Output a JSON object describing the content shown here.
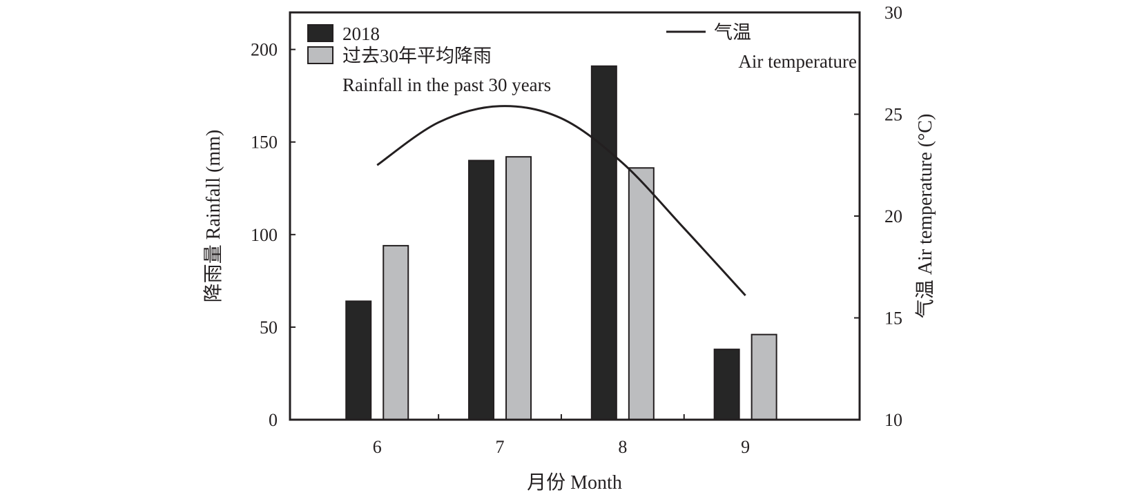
{
  "chart_data": {
    "type": "bar",
    "categories": [
      "6",
      "7",
      "8",
      "9"
    ],
    "series": [
      {
        "name": "2018",
        "values": [
          64,
          140,
          191,
          38
        ],
        "color": "#262626"
      },
      {
        "name": "过去30年平均降雨",
        "name_en": "Rainfall in the past 30 years",
        "values": [
          94,
          142,
          136,
          46
        ],
        "color": "#bcbdbf"
      }
    ],
    "line_series": {
      "name": "气温",
      "name_en": "Air temperature",
      "axis": "right",
      "color": "#231f20",
      "x": [
        6,
        6.5,
        7,
        7.5,
        8,
        8.5,
        9
      ],
      "values": [
        22.5,
        24.6,
        25.4,
        24.8,
        22.6,
        19.4,
        16.1
      ]
    },
    "xlabel": "月份 Month",
    "ylabel": "降雨量 Rainfall (mm)",
    "y2label": "气温 Air temperature (°C)",
    "ylim": [
      0,
      220
    ],
    "yticks": [
      0,
      50,
      100,
      150,
      200
    ],
    "y2lim": [
      10,
      30
    ],
    "y2ticks": [
      10,
      15,
      20,
      25,
      30
    ],
    "grid": false,
    "legend_bars_placement": "top-left",
    "legend_line_placement": "top-right"
  }
}
